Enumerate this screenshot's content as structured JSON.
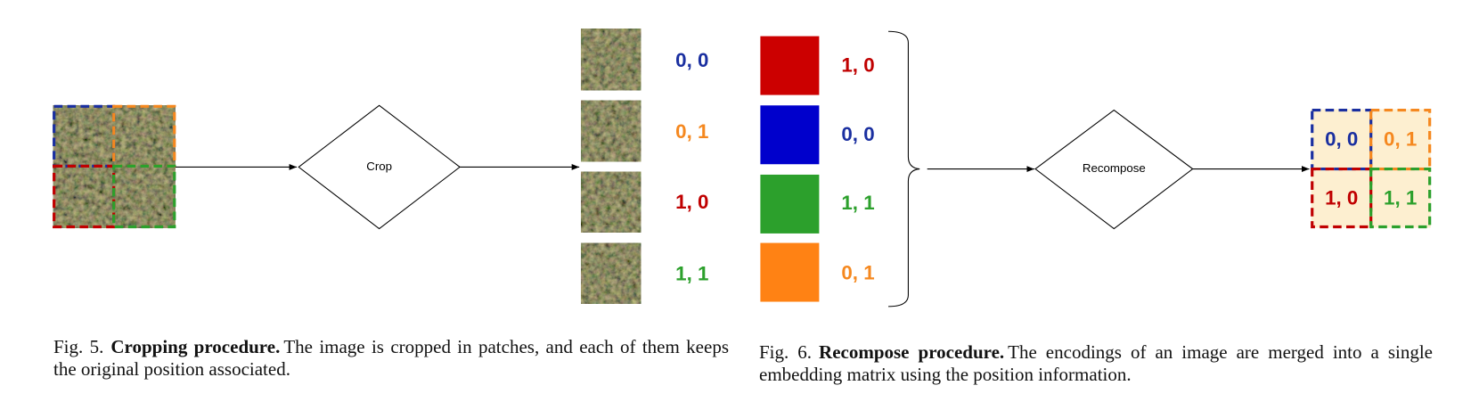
{
  "fig5": {
    "diamond_label": "Crop",
    "patch_labels": [
      "0, 0",
      "0, 1",
      "1, 0",
      "1, 1"
    ],
    "caption": {
      "number": "Fig. 5.",
      "title": "Cropping procedure.",
      "text": "The image is cropped in patches, and each of them keeps the original position associated."
    }
  },
  "fig6": {
    "block_labels": [
      "1, 0",
      "0, 0",
      "1, 1",
      "0, 1"
    ],
    "diamond_label": "Recompose",
    "grid_labels": [
      "0, 0",
      "0, 1",
      "1, 0",
      "1, 1"
    ],
    "caption": {
      "number": "Fig. 6.",
      "title": "Recompose procedure.",
      "text": "The encodings of an image are merged into a single embedding matrix using the position information."
    }
  }
}
